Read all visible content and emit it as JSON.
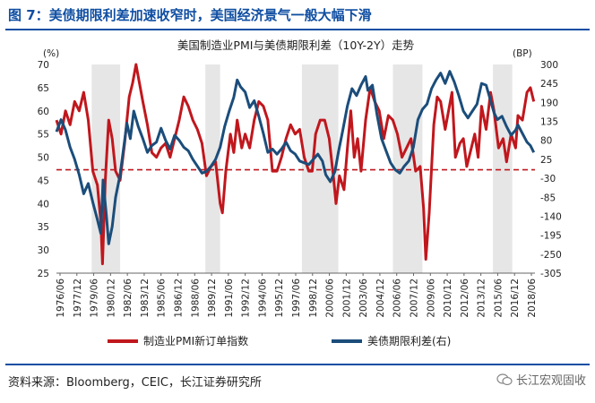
{
  "figure": {
    "title": "图 7：美债期限利差加速收窄时，美国经济景气一般大幅下滑",
    "source": "资料来源：Bloomberg，CEIC，长江证券研究所",
    "brand": "长江宏观固收"
  },
  "chart_data": {
    "type": "line",
    "title": "美国制造业PMI与美债期限利差（10Y-2Y）走势",
    "left_unit": "(%)",
    "right_unit": "(BP)",
    "left_ylim": [
      25,
      70
    ],
    "left_yticks": [
      25,
      30,
      35,
      40,
      45,
      50,
      55,
      60,
      65,
      70
    ],
    "right_ylim": [
      -305,
      300
    ],
    "right_yticks": [
      -305,
      -250,
      -195,
      -140,
      -85,
      -30,
      25,
      80,
      135,
      190,
      245,
      300
    ],
    "x_tick_labels": [
      "1976/06",
      "1977/12",
      "1979/06",
      "1980/12",
      "1982/06",
      "1983/12",
      "1985/06",
      "1986/12",
      "1988/06",
      "1989/12",
      "1991/06",
      "1992/12",
      "1994/06",
      "1995/12",
      "1997/06",
      "1998/12",
      "2000/06",
      "2001/12",
      "2003/06",
      "2004/12",
      "2006/06",
      "2007/12",
      "2009/06",
      "2010/12",
      "2012/06",
      "2013/12",
      "2015/06",
      "2016/12",
      "2018/06"
    ],
    "x_range": [
      1976.4,
      2018.5
    ],
    "reference_line": {
      "axis": "left",
      "value": 47.3,
      "style": "dashed"
    },
    "recession_bands": [
      [
        1979.5,
        1982.0
      ],
      [
        1989.5,
        1990.8
      ],
      [
        1998.0,
        2001.2
      ],
      [
        2006.0,
        2008.6
      ],
      [
        2014.8,
        2016.5
      ]
    ],
    "series": [
      {
        "name": "制造业PMI新订单指数",
        "axis": "left",
        "color": "#c0171d",
        "points": [
          [
            1976.4,
            58
          ],
          [
            1976.8,
            55
          ],
          [
            1977.2,
            60
          ],
          [
            1977.6,
            57
          ],
          [
            1978.0,
            62
          ],
          [
            1978.4,
            60
          ],
          [
            1978.8,
            64
          ],
          [
            1979.2,
            58
          ],
          [
            1979.6,
            47
          ],
          [
            1980.0,
            44
          ],
          [
            1980.3,
            36
          ],
          [
            1980.45,
            27
          ],
          [
            1980.7,
            45
          ],
          [
            1981.0,
            58
          ],
          [
            1981.3,
            54
          ],
          [
            1981.6,
            47
          ],
          [
            1982.0,
            45
          ],
          [
            1982.4,
            53
          ],
          [
            1982.8,
            63
          ],
          [
            1983.1,
            66
          ],
          [
            1983.4,
            70
          ],
          [
            1983.7,
            66
          ],
          [
            1984.0,
            62
          ],
          [
            1984.4,
            57
          ],
          [
            1984.8,
            51
          ],
          [
            1985.2,
            50
          ],
          [
            1985.6,
            52
          ],
          [
            1986.0,
            53
          ],
          [
            1986.4,
            50
          ],
          [
            1986.8,
            54
          ],
          [
            1987.2,
            58
          ],
          [
            1987.6,
            63
          ],
          [
            1988.0,
            61
          ],
          [
            1988.4,
            58
          ],
          [
            1988.8,
            56
          ],
          [
            1989.2,
            53
          ],
          [
            1989.6,
            46
          ],
          [
            1990.0,
            48
          ],
          [
            1990.4,
            49
          ],
          [
            1990.8,
            40
          ],
          [
            1991.0,
            38
          ],
          [
            1991.3,
            47
          ],
          [
            1991.7,
            55
          ],
          [
            1992.0,
            51
          ],
          [
            1992.3,
            58
          ],
          [
            1992.7,
            52
          ],
          [
            1993.0,
            55
          ],
          [
            1993.4,
            52
          ],
          [
            1993.8,
            58
          ],
          [
            1994.2,
            62
          ],
          [
            1994.6,
            61
          ],
          [
            1995.0,
            58
          ],
          [
            1995.4,
            47
          ],
          [
            1995.8,
            47
          ],
          [
            1996.2,
            50
          ],
          [
            1996.6,
            54
          ],
          [
            1997.0,
            57
          ],
          [
            1997.4,
            55
          ],
          [
            1997.8,
            56
          ],
          [
            1998.2,
            50
          ],
          [
            1998.6,
            47
          ],
          [
            1998.9,
            47
          ],
          [
            1999.2,
            55
          ],
          [
            1999.6,
            58
          ],
          [
            2000.0,
            58
          ],
          [
            2000.4,
            54
          ],
          [
            2000.8,
            45
          ],
          [
            2001.0,
            40
          ],
          [
            2001.3,
            46
          ],
          [
            2001.7,
            43
          ],
          [
            2002.0,
            52
          ],
          [
            2002.3,
            60
          ],
          [
            2002.6,
            50
          ],
          [
            2002.9,
            54
          ],
          [
            2003.2,
            47
          ],
          [
            2003.6,
            58
          ],
          [
            2004.0,
            65
          ],
          [
            2004.4,
            62
          ],
          [
            2004.8,
            60
          ],
          [
            2005.2,
            54
          ],
          [
            2005.6,
            59
          ],
          [
            2006.0,
            58
          ],
          [
            2006.4,
            55
          ],
          [
            2006.8,
            50
          ],
          [
            2007.2,
            52
          ],
          [
            2007.6,
            54
          ],
          [
            2008.0,
            47
          ],
          [
            2008.4,
            48
          ],
          [
            2008.7,
            39
          ],
          [
            2008.9,
            28
          ],
          [
            2009.2,
            38
          ],
          [
            2009.6,
            57
          ],
          [
            2009.9,
            63
          ],
          [
            2010.2,
            62
          ],
          [
            2010.6,
            56
          ],
          [
            2010.9,
            60
          ],
          [
            2011.2,
            64
          ],
          [
            2011.5,
            50
          ],
          [
            2011.9,
            53
          ],
          [
            2012.2,
            54
          ],
          [
            2012.5,
            48
          ],
          [
            2012.9,
            52
          ],
          [
            2013.2,
            55
          ],
          [
            2013.5,
            50
          ],
          [
            2013.8,
            61
          ],
          [
            2014.2,
            56
          ],
          [
            2014.6,
            64
          ],
          [
            2014.9,
            60
          ],
          [
            2015.3,
            52
          ],
          [
            2015.7,
            54
          ],
          [
            2016.0,
            49
          ],
          [
            2016.4,
            55
          ],
          [
            2016.8,
            52
          ],
          [
            2017.0,
            59
          ],
          [
            2017.4,
            58
          ],
          [
            2017.8,
            64
          ],
          [
            2018.1,
            65
          ],
          [
            2018.4,
            62
          ]
        ]
      },
      {
        "name": "美债期限利差(右)",
        "axis": "right",
        "color": "#1b4d7a",
        "points": [
          [
            1976.4,
            105
          ],
          [
            1976.8,
            140
          ],
          [
            1977.2,
            110
          ],
          [
            1977.6,
            60
          ],
          [
            1978.0,
            25
          ],
          [
            1978.4,
            -20
          ],
          [
            1978.8,
            -75
          ],
          [
            1979.2,
            -45
          ],
          [
            1979.6,
            -100
          ],
          [
            1980.0,
            -150
          ],
          [
            1980.3,
            -190
          ],
          [
            1980.5,
            -35
          ],
          [
            1980.8,
            -140
          ],
          [
            1981.0,
            -220
          ],
          [
            1981.3,
            -170
          ],
          [
            1981.6,
            -85
          ],
          [
            1982.0,
            -20
          ],
          [
            1982.3,
            55
          ],
          [
            1982.6,
            130
          ],
          [
            1982.9,
            85
          ],
          [
            1983.2,
            165
          ],
          [
            1983.6,
            120
          ],
          [
            1984.0,
            85
          ],
          [
            1984.4,
            45
          ],
          [
            1984.8,
            65
          ],
          [
            1985.2,
            75
          ],
          [
            1985.6,
            115
          ],
          [
            1986.0,
            80
          ],
          [
            1986.4,
            55
          ],
          [
            1986.8,
            95
          ],
          [
            1987.2,
            80
          ],
          [
            1987.6,
            60
          ],
          [
            1988.0,
            50
          ],
          [
            1988.4,
            25
          ],
          [
            1988.8,
            5
          ],
          [
            1989.2,
            -15
          ],
          [
            1989.6,
            -10
          ],
          [
            1990.0,
            5
          ],
          [
            1990.4,
            25
          ],
          [
            1990.8,
            60
          ],
          [
            1991.2,
            120
          ],
          [
            1991.6,
            165
          ],
          [
            1992.0,
            205
          ],
          [
            1992.3,
            255
          ],
          [
            1992.6,
            235
          ],
          [
            1993.0,
            220
          ],
          [
            1993.4,
            175
          ],
          [
            1993.8,
            195
          ],
          [
            1994.2,
            150
          ],
          [
            1994.6,
            100
          ],
          [
            1995.0,
            45
          ],
          [
            1995.4,
            55
          ],
          [
            1995.8,
            40
          ],
          [
            1996.2,
            55
          ],
          [
            1996.6,
            75
          ],
          [
            1997.0,
            50
          ],
          [
            1997.4,
            40
          ],
          [
            1997.8,
            20
          ],
          [
            1998.2,
            15
          ],
          [
            1998.6,
            10
          ],
          [
            1999.0,
            25
          ],
          [
            1999.4,
            40
          ],
          [
            1999.8,
            20
          ],
          [
            2000.1,
            -20
          ],
          [
            2000.5,
            -40
          ],
          [
            2000.9,
            -10
          ],
          [
            2001.2,
            45
          ],
          [
            2001.6,
            110
          ],
          [
            2002.0,
            180
          ],
          [
            2002.4,
            230
          ],
          [
            2002.8,
            210
          ],
          [
            2003.2,
            240
          ],
          [
            2003.6,
            265
          ],
          [
            2003.8,
            225
          ],
          [
            2004.2,
            240
          ],
          [
            2004.6,
            155
          ],
          [
            2005.0,
            85
          ],
          [
            2005.4,
            50
          ],
          [
            2005.8,
            15
          ],
          [
            2006.2,
            -5
          ],
          [
            2006.6,
            -15
          ],
          [
            2007.0,
            5
          ],
          [
            2007.4,
            20
          ],
          [
            2007.8,
            60
          ],
          [
            2008.2,
            140
          ],
          [
            2008.6,
            170
          ],
          [
            2009.0,
            185
          ],
          [
            2009.4,
            230
          ],
          [
            2009.8,
            255
          ],
          [
            2010.2,
            275
          ],
          [
            2010.6,
            245
          ],
          [
            2011.0,
            280
          ],
          [
            2011.4,
            250
          ],
          [
            2011.8,
            210
          ],
          [
            2012.2,
            165
          ],
          [
            2012.6,
            145
          ],
          [
            2013.0,
            165
          ],
          [
            2013.4,
            185
          ],
          [
            2013.8,
            245
          ],
          [
            2014.2,
            240
          ],
          [
            2014.6,
            195
          ],
          [
            2014.9,
            160
          ],
          [
            2015.2,
            140
          ],
          [
            2015.6,
            150
          ],
          [
            2016.0,
            120
          ],
          [
            2016.4,
            95
          ],
          [
            2016.8,
            110
          ],
          [
            2017.0,
            125
          ],
          [
            2017.4,
            100
          ],
          [
            2017.8,
            75
          ],
          [
            2018.1,
            65
          ],
          [
            2018.4,
            45
          ]
        ]
      }
    ]
  }
}
